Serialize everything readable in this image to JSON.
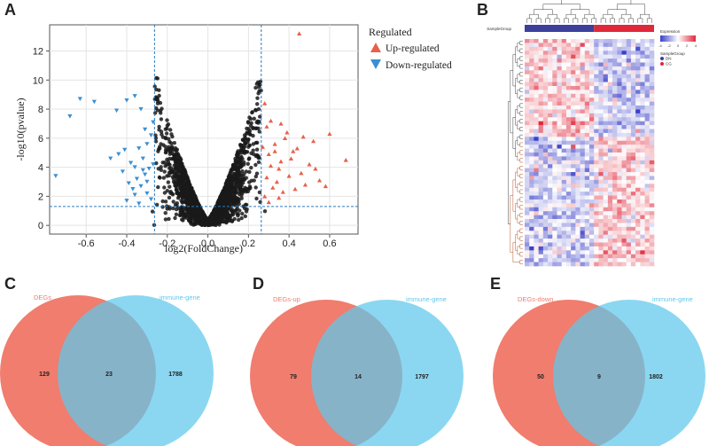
{
  "panels": {
    "a": {
      "letter": "A"
    },
    "b": {
      "letter": "B"
    },
    "c": {
      "letter": "C"
    },
    "d": {
      "letter": "D"
    },
    "e": {
      "letter": "E"
    }
  },
  "chart_data": [
    {
      "type": "scatter",
      "title": "",
      "xlabel": "log2(FoldChange)",
      "ylabel": "-log10(pvalue)",
      "xlim": [
        -0.78,
        0.74
      ],
      "ylim": [
        -0.6,
        13.8
      ],
      "xticks": [
        "-0.6",
        "-0.4",
        "-0.2",
        "0.0",
        "0.2",
        "0.4",
        "0.6"
      ],
      "xtick_values": [
        -0.6,
        -0.4,
        -0.2,
        0.0,
        0.2,
        0.4,
        0.6
      ],
      "yticks": [
        "0",
        "2",
        "4",
        "6",
        "8",
        "10",
        "12"
      ],
      "ytick_values": [
        0,
        2,
        4,
        6,
        8,
        10,
        12
      ],
      "thresholds": {
        "log2fc": [
          -0.263,
          0.263
        ],
        "neglog10p": 1.3
      },
      "legend": {
        "title": "Regulated",
        "position": "right",
        "entries": [
          {
            "label": "Up-regulated",
            "color": "#e8604c",
            "marker": "triangle-up"
          },
          {
            "label": "Down-regulated",
            "color": "#3b8fd1",
            "marker": "triangle-down"
          }
        ]
      },
      "colors": {
        "ns": "#1a1a1a",
        "up": "#e8604c",
        "down": "#3b8fd1",
        "threshold": "#2b7bbf"
      },
      "series": [
        {
          "name": "Up-regulated",
          "points": [
            [
              0.45,
              13.2
            ],
            [
              0.68,
              4.5
            ],
            [
              0.6,
              6.3
            ],
            [
              0.52,
              5.8
            ],
            [
              0.38,
              6.0
            ],
            [
              0.33,
              5.6
            ],
            [
              0.42,
              5.1
            ],
            [
              0.55,
              3.1
            ],
            [
              0.48,
              2.8
            ],
            [
              0.35,
              3.9
            ],
            [
              0.29,
              6.8
            ],
            [
              0.31,
              7.2
            ],
            [
              0.28,
              8.4
            ],
            [
              0.36,
              4.4
            ],
            [
              0.4,
              3.4
            ],
            [
              0.5,
              4.2
            ],
            [
              0.32,
              2.6
            ],
            [
              0.3,
              4.9
            ],
            [
              0.44,
              5.3
            ],
            [
              0.39,
              6.4
            ],
            [
              0.34,
              3.0
            ],
            [
              0.46,
              3.6
            ],
            [
              0.37,
              2.3
            ],
            [
              0.28,
              2.0
            ],
            [
              0.3,
              1.6
            ],
            [
              0.41,
              4.6
            ],
            [
              0.53,
              3.9
            ],
            [
              0.33,
              5.1
            ],
            [
              0.47,
              6.1
            ],
            [
              0.29,
              3.3
            ],
            [
              0.36,
              7.0
            ],
            [
              0.31,
              4.1
            ],
            [
              0.27,
              5.4
            ],
            [
              0.43,
              2.5
            ],
            [
              0.58,
              2.7
            ],
            [
              0.35,
              1.9
            ]
          ]
        },
        {
          "name": "Down-regulated",
          "points": [
            [
              -0.75,
              3.4
            ],
            [
              -0.68,
              7.5
            ],
            [
              -0.63,
              8.7
            ],
            [
              -0.56,
              8.5
            ],
            [
              -0.45,
              7.9
            ],
            [
              -0.4,
              8.6
            ],
            [
              -0.36,
              8.9
            ],
            [
              -0.33,
              8.0
            ],
            [
              -0.48,
              4.6
            ],
            [
              -0.44,
              4.9
            ],
            [
              -0.41,
              5.2
            ],
            [
              -0.38,
              4.3
            ],
            [
              -0.36,
              4.0
            ],
            [
              -0.34,
              5.3
            ],
            [
              -0.32,
              4.6
            ],
            [
              -0.3,
              5.6
            ],
            [
              -0.28,
              6.2
            ],
            [
              -0.27,
              7.1
            ],
            [
              -0.29,
              3.9
            ],
            [
              -0.31,
              3.5
            ],
            [
              -0.35,
              3.2
            ],
            [
              -0.39,
              2.9
            ],
            [
              -0.37,
              2.5
            ],
            [
              -0.33,
              2.7
            ],
            [
              -0.3,
              2.2
            ],
            [
              -0.28,
              1.8
            ],
            [
              -0.34,
              1.5
            ],
            [
              -0.4,
              1.7
            ],
            [
              -0.42,
              3.7
            ],
            [
              -0.31,
              6.6
            ],
            [
              -0.3,
              3.0
            ],
            [
              -0.27,
              4.2
            ],
            [
              -0.36,
              2.1
            ],
            [
              -0.32,
              3.8
            ]
          ]
        },
        {
          "name": "Not significant",
          "generator": "volcano",
          "count": 2200
        }
      ]
    },
    {
      "type": "heatmap",
      "rows": 58,
      "cols": 28,
      "color_scale": {
        "min": -4,
        "max": 4,
        "low": "#3b40c8",
        "mid": "#ffffff",
        "high": "#e0283a"
      },
      "legend_title": "Expression",
      "legend_ticks": [
        "-4",
        "-2",
        "0",
        "2",
        "4"
      ],
      "annotation_label": "SampleGroup",
      "groups": [
        {
          "name": "DN",
          "color": "#3c3f9c",
          "n": 15
        },
        {
          "name": "CG",
          "color": "#e0283a",
          "n": 13
        }
      ]
    },
    {
      "type": "venn",
      "sets": [
        {
          "label": "DEGs",
          "color": "#f07d6e"
        },
        {
          "label": "immune-gene",
          "color": "#87d5f0"
        }
      ],
      "counts": {
        "left": "129",
        "overlap": "23",
        "right": "1788"
      }
    },
    {
      "type": "venn",
      "sets": [
        {
          "label": "DEGs-up",
          "color": "#f07d6e"
        },
        {
          "label": "immune-gene",
          "color": "#87d5f0"
        }
      ],
      "counts": {
        "left": "79",
        "overlap": "14",
        "right": "1797"
      }
    },
    {
      "type": "venn",
      "sets": [
        {
          "label": "DEGs-down",
          "color": "#f07d6e"
        },
        {
          "label": "immune-gene",
          "color": "#87d5f0"
        }
      ],
      "counts": {
        "left": "50",
        "overlap": "9",
        "right": "1802"
      }
    }
  ]
}
